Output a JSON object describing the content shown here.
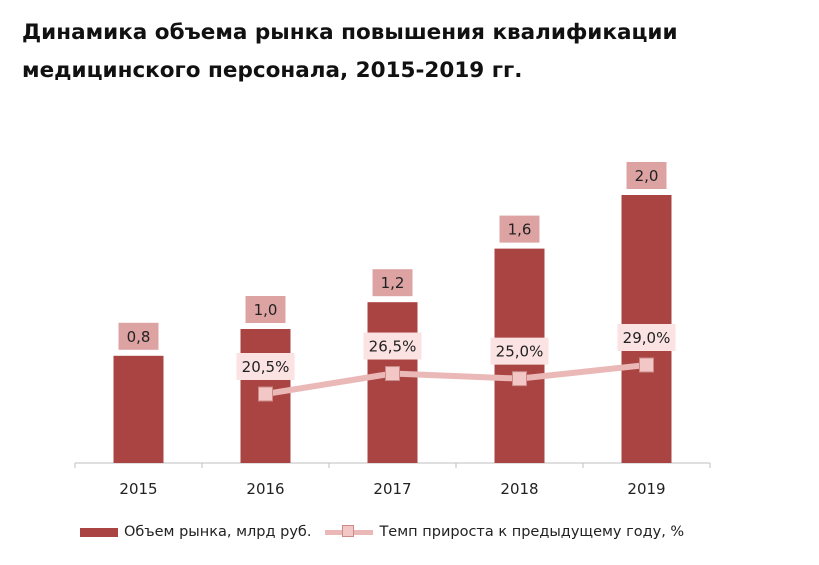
{
  "title_lines": [
    "Динамика объема рынка повышения квалификации",
    "медицинского персонала, 2015-2019 гг."
  ],
  "colors": {
    "bar": "#a94442",
    "bar_label_bg": "#dda3a2",
    "line": "#eab8b7",
    "marker": "#f2c7c6",
    "line_label_bg": "#fae3e2",
    "axis": "#bfbfbf"
  },
  "chart_data": {
    "type": "bar+line",
    "categories": [
      "2015",
      "2016",
      "2017",
      "2018",
      "2019"
    ],
    "series": [
      {
        "name": "Объем рынка, млрд руб.",
        "type": "bar",
        "values": [
          0.8,
          1.0,
          1.2,
          1.6,
          2.0
        ],
        "labels": [
          "0,8",
          "1,0",
          "1,2",
          "1,6",
          "2,0"
        ]
      },
      {
        "name": "Темп прироста к предыдущему году, %",
        "type": "line",
        "values": [
          null,
          20.5,
          26.5,
          25.0,
          29.0
        ],
        "labels": [
          "",
          "20,5%",
          "26,5%",
          "25,0%",
          "29,0%"
        ]
      }
    ],
    "bar_ylim": [
      0,
      2.0
    ],
    "line_ylim": [
      -20,
      40
    ],
    "grid": false,
    "legend_position": "bottom"
  },
  "legend": {
    "bar_label": "Объем рынка, млрд руб.",
    "line_label": "Темп прироста к предыдущему году, %"
  }
}
